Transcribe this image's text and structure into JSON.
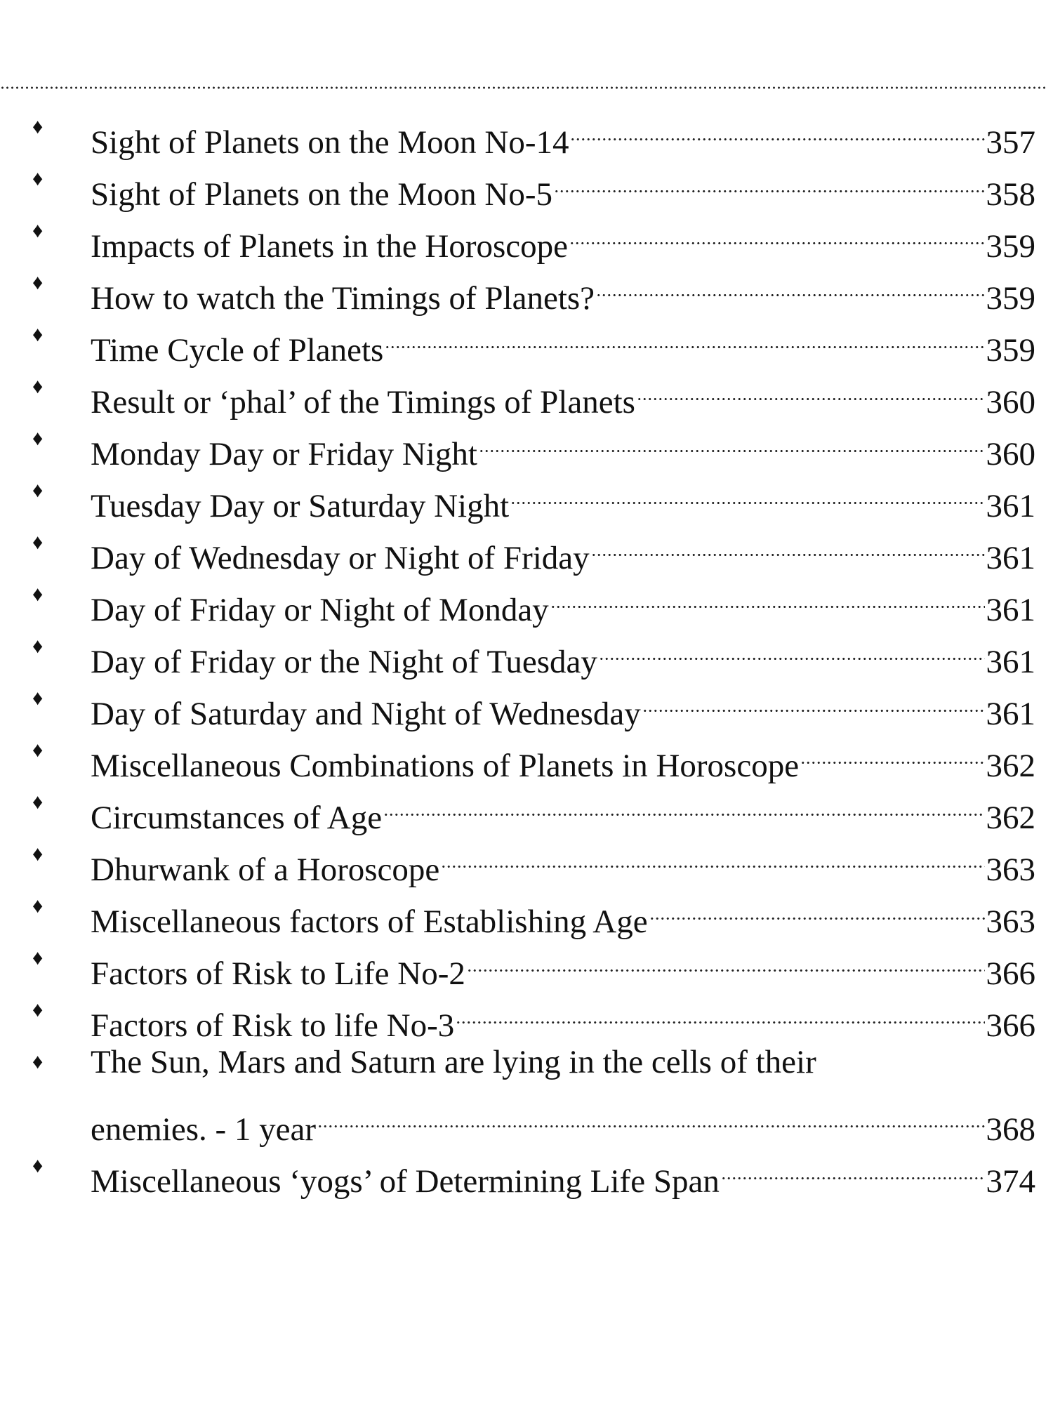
{
  "entries": [
    {
      "title": "Sight of Planets on the Moon No-14",
      "page": "357"
    },
    {
      "title": "Sight of Planets on the Moon No-5",
      "page": "358"
    },
    {
      "title": "Impacts of Planets in the Horoscope",
      "page": "359"
    },
    {
      "title": "How to watch the Timings of Planets?",
      "page": "359"
    },
    {
      "title": "Time Cycle of Planets",
      "page": "359"
    },
    {
      "title": "Result or ‘phal’ of the Timings of Planets",
      "page": "360"
    },
    {
      "title": "Monday Day or Friday Night",
      "page": "360"
    },
    {
      "title": "Tuesday Day or Saturday Night",
      "page": "361"
    },
    {
      "title": "Day of Wednesday or Night of Friday",
      "page": "361"
    },
    {
      "title": "Day of Friday or Night of Monday",
      "page": "361"
    },
    {
      "title": "Day of Friday or the Night of Tuesday",
      "page": "361"
    },
    {
      "title": "Day of Saturday and Night of Wednesday",
      "page": "361"
    },
    {
      "title": "Miscellaneous Combinations of Planets in Horoscope",
      "page": "362"
    },
    {
      "title": "Circumstances of Age",
      "page": "362"
    },
    {
      "title": "Dhurwank of a Horoscope",
      "page": "363"
    },
    {
      "title": "Miscellaneous factors of Establishing Age",
      "page": "363"
    },
    {
      "title": "Factors of Risk to Life No-2",
      "page": "366"
    },
    {
      "title": "Factors of Risk to life No-3",
      "page": "366"
    },
    {
      "title": "The Sun, Mars and Saturn are lying in the cells of their",
      "title2": "enemies. - 1 year",
      "page": "368"
    },
    {
      "title": "Miscellaneous ‘yogs’ of Determining Life Span",
      "page": "374"
    }
  ],
  "bullet_icon": "diamond-bullet"
}
